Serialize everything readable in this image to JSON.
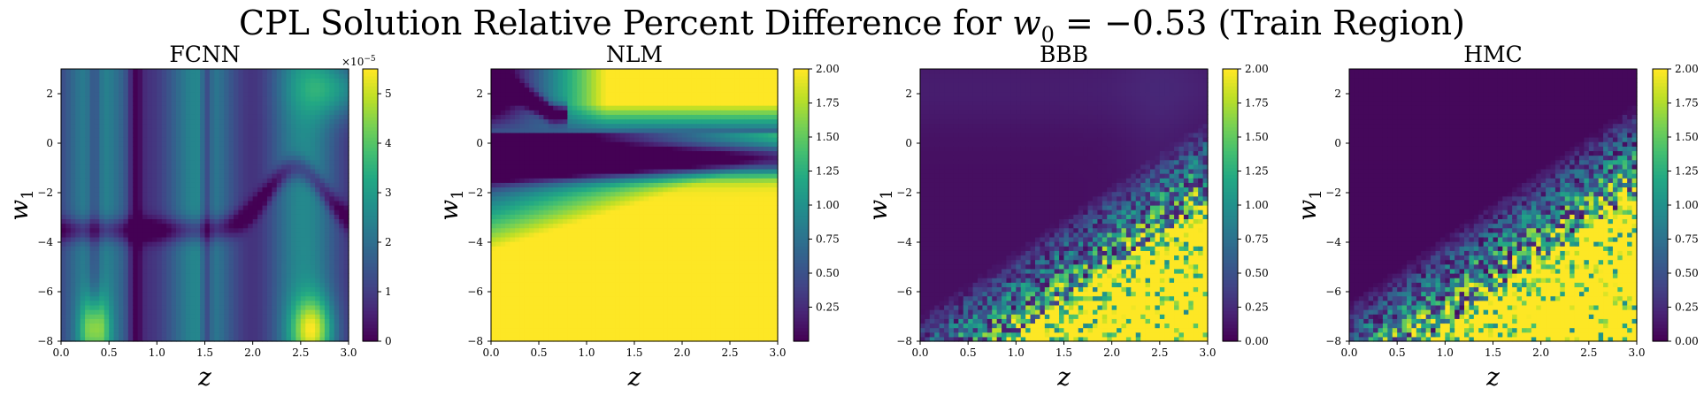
{
  "figure": {
    "title_prefix": "CPL Solution Relative Percent Difference for ",
    "title_math": "w",
    "title_sub": "0",
    "title_suffix": " = −0.53 (Train Region)"
  },
  "chart_data": [
    {
      "type": "heatmap",
      "title": "FCNN",
      "xlabel": "z",
      "ylabel": "w",
      "ylabel_sub": "1",
      "xlim": [
        0.0,
        3.0
      ],
      "ylim": [
        -8,
        3
      ],
      "xticks": [
        "0.0",
        "0.5",
        "1.0",
        "1.5",
        "2.0",
        "2.5",
        "3.0"
      ],
      "xtick_values": [
        0.0,
        0.5,
        1.0,
        1.5,
        2.0,
        2.5,
        3.0
      ],
      "yticks": [
        "−8",
        "−6",
        "−4",
        "−2",
        "0",
        "2"
      ],
      "ytick_values": [
        -8,
        -6,
        -4,
        -2,
        0,
        2
      ],
      "colormap": "viridis",
      "colorbar": {
        "range": [
          0,
          5.5
        ],
        "ticks": [
          "0",
          "1",
          "2",
          "3",
          "4",
          "5"
        ],
        "tick_values": [
          0,
          1,
          2,
          3,
          4,
          5
        ],
        "multiplier_base": "×10",
        "multiplier_exp": "−5"
      }
    },
    {
      "type": "heatmap",
      "title": "NLM",
      "xlabel": "z",
      "ylabel": "w",
      "ylabel_sub": "1",
      "xlim": [
        0.0,
        3.0
      ],
      "ylim": [
        -8,
        3
      ],
      "xticks": [
        "0.0",
        "0.5",
        "1.0",
        "1.5",
        "2.0",
        "2.5",
        "3.0"
      ],
      "xtick_values": [
        0.0,
        0.5,
        1.0,
        1.5,
        2.0,
        2.5,
        3.0
      ],
      "yticks": [
        "−8",
        "−6",
        "−4",
        "−2",
        "0",
        "2"
      ],
      "ytick_values": [
        -8,
        -6,
        -4,
        -2,
        0,
        2
      ],
      "colormap": "viridis",
      "colorbar": {
        "range": [
          0.0,
          2.0
        ],
        "ticks": [
          "0.25",
          "0.50",
          "0.75",
          "1.00",
          "1.25",
          "1.50",
          "1.75",
          "2.00"
        ],
        "tick_values": [
          0.25,
          0.5,
          0.75,
          1.0,
          1.25,
          1.5,
          1.75,
          2.0
        ]
      }
    },
    {
      "type": "heatmap",
      "title": "BBB",
      "xlabel": "z",
      "ylabel": "w",
      "ylabel_sub": "1",
      "xlim": [
        0.0,
        3.0
      ],
      "ylim": [
        -8,
        3
      ],
      "xticks": [
        "0.0",
        "0.5",
        "1.0",
        "1.5",
        "2.0",
        "2.5",
        "3.0"
      ],
      "xtick_values": [
        0.0,
        0.5,
        1.0,
        1.5,
        2.0,
        2.5,
        3.0
      ],
      "yticks": [
        "−8",
        "−6",
        "−4",
        "−2",
        "0",
        "2"
      ],
      "ytick_values": [
        -8,
        -6,
        -4,
        -2,
        0,
        2
      ],
      "colormap": "viridis",
      "colorbar": {
        "range": [
          0.0,
          2.0
        ],
        "ticks": [
          "0.00",
          "0.25",
          "0.50",
          "0.75",
          "1.00",
          "1.25",
          "1.50",
          "1.75",
          "2.00"
        ],
        "tick_values": [
          0.0,
          0.25,
          0.5,
          0.75,
          1.0,
          1.25,
          1.5,
          1.75,
          2.0
        ]
      }
    },
    {
      "type": "heatmap",
      "title": "HMC",
      "xlabel": "z",
      "ylabel": "w",
      "ylabel_sub": "1",
      "xlim": [
        0.0,
        3.0
      ],
      "ylim": [
        -8,
        3
      ],
      "xticks": [
        "0.0",
        "0.5",
        "1.0",
        "1.5",
        "2.0",
        "2.5",
        "3.0"
      ],
      "xtick_values": [
        0.0,
        0.5,
        1.0,
        1.5,
        2.0,
        2.5,
        3.0
      ],
      "yticks": [
        "−8",
        "−6",
        "−4",
        "−2",
        "0",
        "2"
      ],
      "ytick_values": [
        -8,
        -6,
        -4,
        -2,
        0,
        2
      ],
      "colormap": "viridis",
      "colorbar": {
        "range": [
          0.0,
          2.0
        ],
        "ticks": [
          "0.00",
          "0.25",
          "0.50",
          "0.75",
          "1.00",
          "1.25",
          "1.50",
          "1.75",
          "2.00"
        ],
        "tick_values": [
          0.0,
          0.25,
          0.5,
          0.75,
          1.0,
          1.25,
          1.5,
          1.75,
          2.0
        ]
      }
    }
  ]
}
